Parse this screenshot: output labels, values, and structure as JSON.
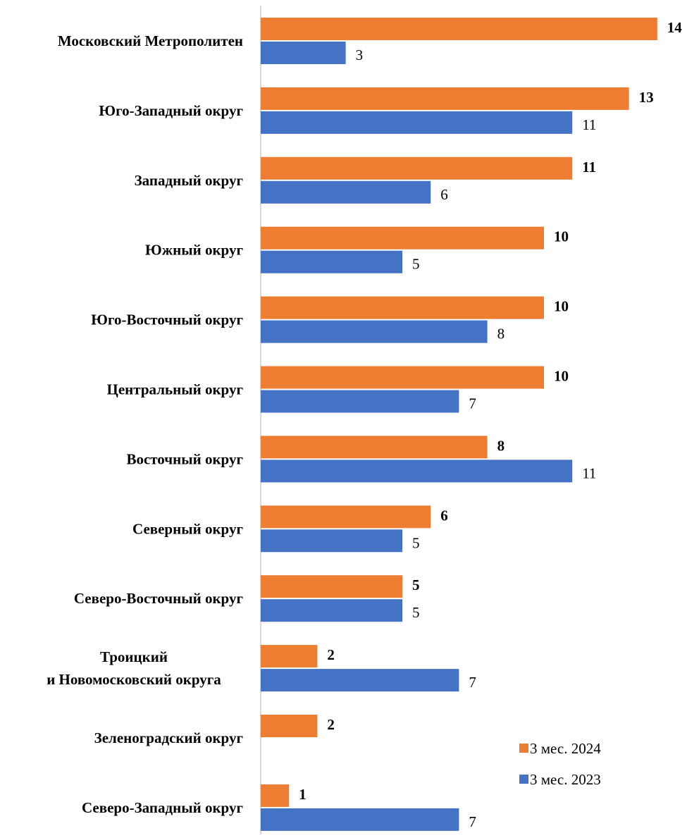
{
  "chart_data": {
    "type": "bar",
    "orientation": "horizontal",
    "categories": [
      [
        "Московский Метрополитен"
      ],
      [
        "Юго-Западный округ"
      ],
      [
        "Западный округ"
      ],
      [
        "Южный округ"
      ],
      [
        "Юго-Восточный округ"
      ],
      [
        "Центральный округ"
      ],
      [
        "Восточный округ"
      ],
      [
        "Северный округ"
      ],
      [
        "Северо-Восточный округ"
      ],
      [
        "Троицкий",
        "и Новомосковский округа"
      ],
      [
        "Зеленоградский округ"
      ],
      [
        "Северо-Западный округ"
      ]
    ],
    "series": [
      {
        "name": "3 мес. 2024",
        "color": "#ED7D31",
        "label_weight": "bold",
        "values": [
          14,
          13,
          11,
          10,
          10,
          10,
          8,
          6,
          5,
          2,
          2,
          1
        ]
      },
      {
        "name": "3 мес. 2023",
        "color": "#4472C4",
        "label_weight": "normal",
        "values": [
          3,
          11,
          6,
          5,
          8,
          7,
          11,
          5,
          5,
          7,
          null,
          7
        ]
      }
    ],
    "xlim": [
      0,
      14
    ],
    "grid": false,
    "axis_line_color": "#D9D9D9",
    "legend_position": "bottom-right"
  }
}
